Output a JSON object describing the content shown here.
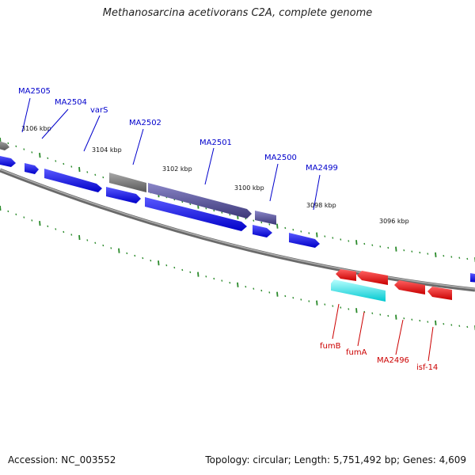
{
  "title": "Methanosarcina acetivorans C2A, complete genome",
  "footer": {
    "accession": "Accession: NC_003552",
    "summary": "Topology: circular; Length: 5,751,492 bp; Genes: 4,609"
  },
  "scale_labels": [
    "3106 kbp",
    "3104 kbp",
    "3102 kbp",
    "3100 kbp",
    "3098 kbp",
    "3096 kbp"
  ],
  "gene_labels_top": [
    "MA2505",
    "MA2504",
    "varS",
    "MA2502",
    "MA2501",
    "MA2500",
    "MA2499"
  ],
  "gene_labels_bottom": [
    "fumB",
    "fumA",
    "MA2496",
    "isf-14"
  ],
  "colors": {
    "forward_gene": "#0000ee",
    "forward_gene_alt": "#55509a",
    "pseudo_gene": "#707070",
    "reverse_gene": "#ee0000",
    "highlight_gene": "#00e8ee",
    "top_label": "#0000cc",
    "bottom_label": "#cc0000",
    "tick": "#2a8a2a",
    "backbone": "#888888"
  }
}
